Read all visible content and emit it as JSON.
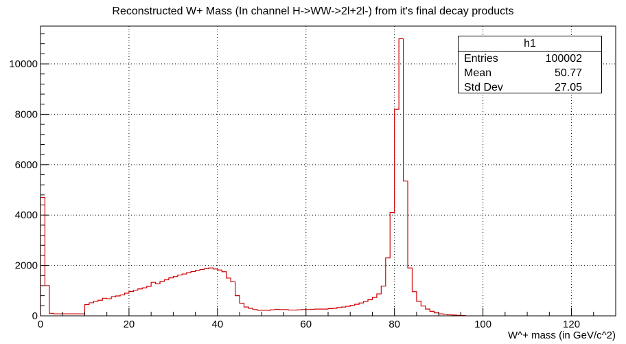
{
  "chart_data": {
    "type": "histogram",
    "title": "Reconstructed W+ Mass (In channel H->WW->2l+2l-) from it's final decay products",
    "xlabel": "W^+ mass (in GeV/c^2)",
    "ylabel": "",
    "xlim": [
      0,
      130
    ],
    "ylim": [
      0,
      11500
    ],
    "x_ticks": [
      0,
      20,
      40,
      60,
      80,
      100,
      120
    ],
    "y_ticks": [
      0,
      2000,
      4000,
      6000,
      8000,
      10000
    ],
    "grid": true,
    "line_color": "#cc0000",
    "bin_width": 1,
    "bin_edges_start": 0,
    "values": [
      4700,
      1200,
      100,
      80,
      80,
      80,
      80,
      80,
      80,
      80,
      450,
      520,
      580,
      620,
      700,
      680,
      760,
      790,
      830,
      900,
      970,
      1020,
      1070,
      1110,
      1170,
      1330,
      1270,
      1370,
      1430,
      1510,
      1560,
      1620,
      1660,
      1710,
      1760,
      1810,
      1840,
      1870,
      1900,
      1860,
      1820,
      1750,
      1500,
      1350,
      800,
      500,
      350,
      300,
      250,
      220,
      220,
      220,
      240,
      260,
      250,
      250,
      230,
      230,
      240,
      250,
      250,
      260,
      270,
      270,
      270,
      290,
      300,
      330,
      350,
      380,
      420,
      460,
      510,
      570,
      640,
      730,
      870,
      1180,
      2300,
      4100,
      8200,
      11000,
      5350,
      1900,
      960,
      580,
      390,
      270,
      180,
      120,
      80,
      60,
      40,
      30,
      20,
      10
    ]
  },
  "statbox": {
    "name": "h1",
    "entries_label": "Entries",
    "entries_value": "100002",
    "mean_label": "Mean",
    "mean_value": "50.77",
    "std_label": "Std Dev",
    "std_value": "27.05"
  }
}
